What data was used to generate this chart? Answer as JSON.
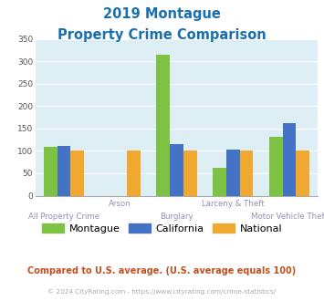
{
  "title_line1": "2019 Montague",
  "title_line2": "Property Crime Comparison",
  "title_color": "#1a6faf",
  "categories": [
    "All Property Crime",
    "Arson",
    "Burglary",
    "Larceny & Theft",
    "Motor Vehicle Theft"
  ],
  "cat_labels_top": [
    "",
    "Arson",
    "",
    "Larceny & Theft",
    ""
  ],
  "cat_labels_bot": [
    "All Property Crime",
    "",
    "Burglary",
    "",
    "Motor Vehicle Theft"
  ],
  "montague": [
    110,
    0,
    315,
    62,
    132
  ],
  "california": [
    112,
    0,
    115,
    103,
    163
  ],
  "national": [
    100,
    100,
    100,
    100,
    100
  ],
  "color_montague": "#7dc242",
  "color_california": "#4472c4",
  "color_national": "#f0a830",
  "ylim": [
    0,
    350
  ],
  "yticks": [
    0,
    50,
    100,
    150,
    200,
    250,
    300,
    350
  ],
  "bg_color": "#deeef5",
  "legend_labels": [
    "Montague",
    "California",
    "National"
  ],
  "footnote1": "Compared to U.S. average. (U.S. average equals 100)",
  "footnote2": "© 2024 CityRating.com - https://www.cityrating.com/crime-statistics/",
  "footnote1_color": "#c05020",
  "footnote2_color": "#aaaaaa",
  "xlabel_color": "#9090b0"
}
